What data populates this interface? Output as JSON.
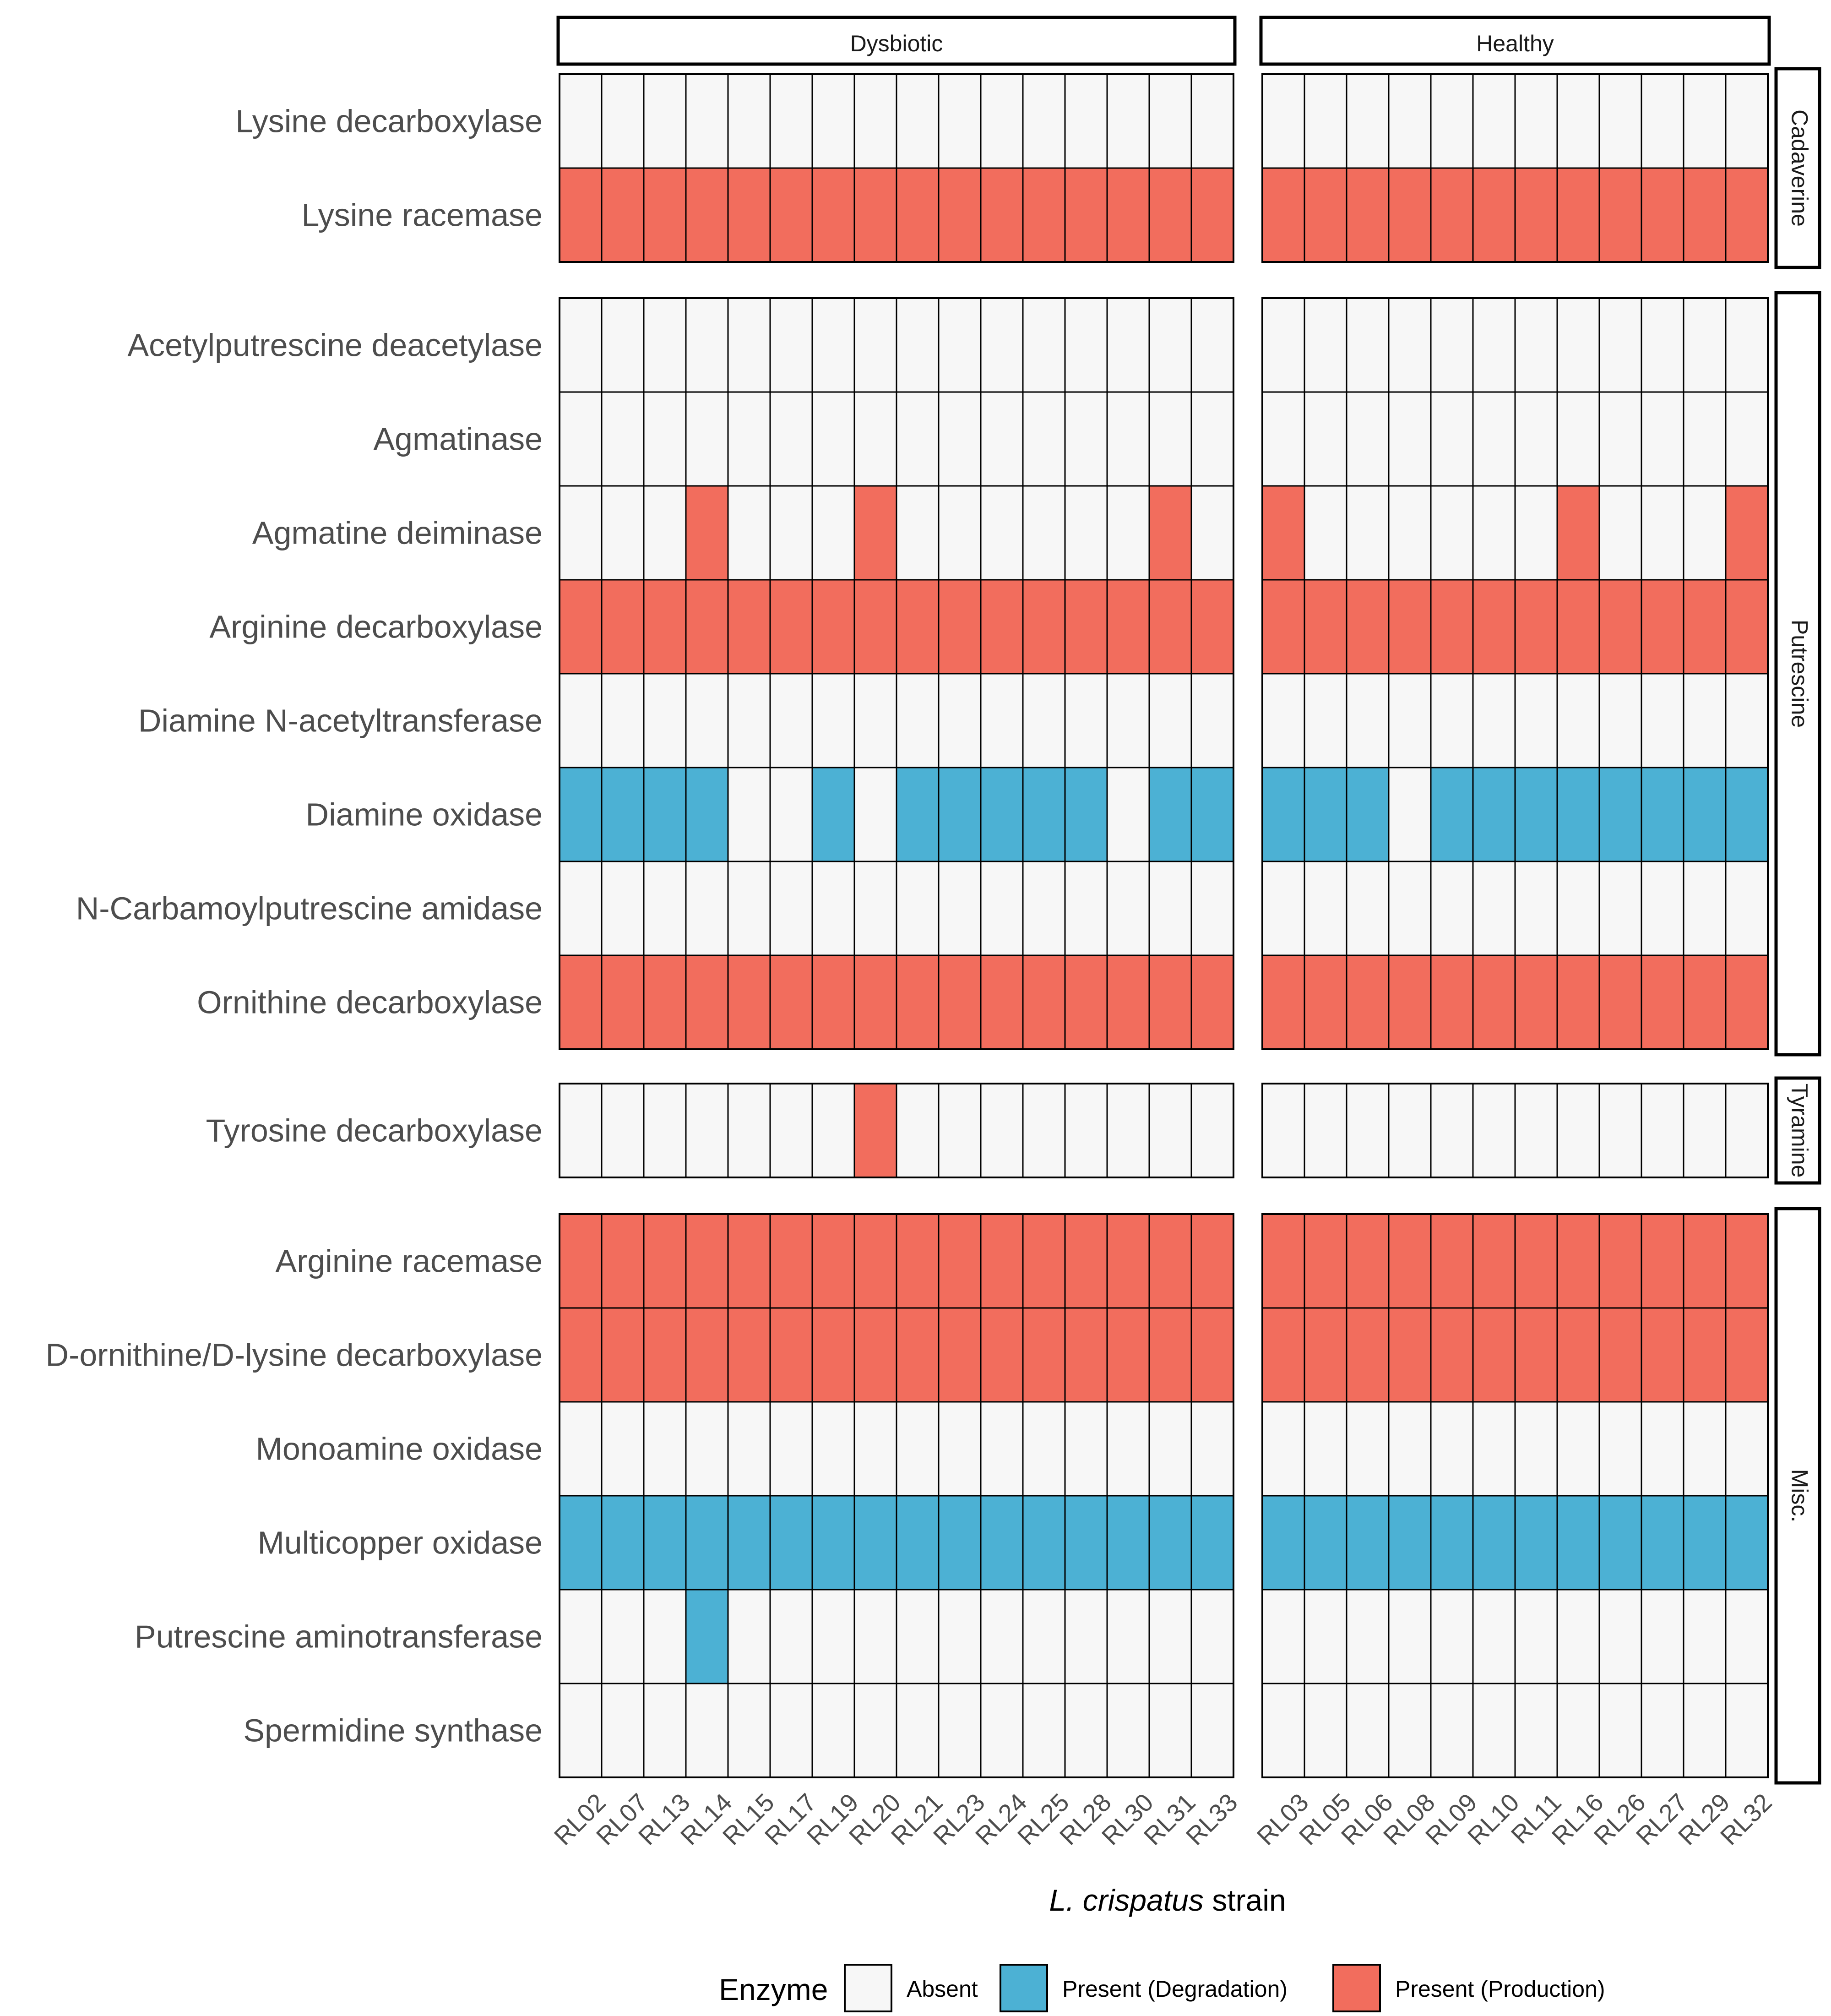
{
  "chart_data": {
    "type": "heatmap",
    "xlabel_italic": "L. crispatus",
    "xlabel_rest": "strain",
    "legend": {
      "title": "Enzyme",
      "items": [
        {
          "key": "A",
          "label": "Absent",
          "color": "#f7f7f7"
        },
        {
          "key": "D",
          "label": "Present (Degradation)",
          "color": "#4cb1d4"
        },
        {
          "key": "P",
          "label": "Present (Production)",
          "color": "#f26d5d"
        }
      ]
    },
    "columns": [
      {
        "name": "Dysbiotic",
        "strains": [
          "RL02",
          "RL07",
          "RL13",
          "RL14",
          "RL15",
          "RL17",
          "RL19",
          "RL20",
          "RL21",
          "RL23",
          "RL24",
          "RL25",
          "RL28",
          "RL30",
          "RL31",
          "RL33"
        ]
      },
      {
        "name": "Healthy",
        "strains": [
          "RL03",
          "RL05",
          "RL06",
          "RL08",
          "RL09",
          "RL10",
          "RL11",
          "RL16",
          "RL26",
          "RL27",
          "RL29",
          "RL32"
        ]
      }
    ],
    "rows": [
      {
        "name": "Cadaverine",
        "enzymes": [
          {
            "name": "Lysine decarboxylase",
            "values": [
              "AAAAAAAAAAAAAAAA",
              "AAAAAAAAAAAA"
            ]
          },
          {
            "name": "Lysine racemase",
            "values": [
              "PPPPPPPPPPPPPPPP",
              "PPPPPPPPPPPP"
            ]
          }
        ]
      },
      {
        "name": "Putrescine",
        "enzymes": [
          {
            "name": "Acetylputrescine deacetylase",
            "values": [
              "AAAAAAAAAAAAAAAA",
              "AAAAAAAAAAAA"
            ]
          },
          {
            "name": "Agmatinase",
            "values": [
              "AAAAAAAAAAAAAAAA",
              "AAAAAAAAAAAA"
            ]
          },
          {
            "name": "Agmatine deiminase",
            "values": [
              "AAAPAAAPAAAAAAPA",
              "PAAAAAAPAAAP"
            ]
          },
          {
            "name": "Arginine decarboxylase",
            "values": [
              "PPPPPPPPPPPPPPPP",
              "PPPPPPPPPPPP"
            ]
          },
          {
            "name": "Diamine N-acetyltransferase",
            "values": [
              "AAAAAAAAAAAAAAAA",
              "AAAAAAAAAAAA"
            ]
          },
          {
            "name": "Diamine oxidase",
            "values": [
              "DDDDAADADDDDDADD",
              "DDDADDDDDDDD"
            ]
          },
          {
            "name": "N-Carbamoylputrescine amidase",
            "values": [
              "AAAAAAAAAAAAAAAA",
              "AAAAAAAAAAAA"
            ]
          },
          {
            "name": "Ornithine decarboxylase",
            "values": [
              "PPPPPPPPPPPPPPPP",
              "PPPPPPPPPPPP"
            ]
          }
        ]
      },
      {
        "name": "Tyramine",
        "enzymes": [
          {
            "name": "Tyrosine decarboxylase",
            "values": [
              "AAAAAAAPAAAAAAAA",
              "AAAAAAAAAAAA"
            ]
          }
        ]
      },
      {
        "name": "Misc.",
        "enzymes": [
          {
            "name": "Arginine racemase",
            "values": [
              "PPPPPPPPPPPPPPPP",
              "PPPPPPPPPPPP"
            ]
          },
          {
            "name": "D-ornithine/D-lysine decarboxylase",
            "values": [
              "PPPPPPPPPPPPPPPP",
              "PPPPPPPPPPPP"
            ]
          },
          {
            "name": "Monoamine oxidase",
            "values": [
              "AAAAAAAAAAAAAAAA",
              "AAAAAAAAAAAA"
            ]
          },
          {
            "name": "Multicopper oxidase",
            "values": [
              "DDDDDDDDDDDDDDDD",
              "DDDDDDDDDDDD"
            ]
          },
          {
            "name": "Putrescine aminotransferase",
            "values": [
              "AAADAAAAAAAAAAAA",
              "AAAAAAAAAAAA"
            ]
          },
          {
            "name": "Spermidine synthase",
            "values": [
              "AAAAAAAAAAAAAAAA",
              "AAAAAAAAAAAA"
            ]
          }
        ]
      }
    ]
  }
}
